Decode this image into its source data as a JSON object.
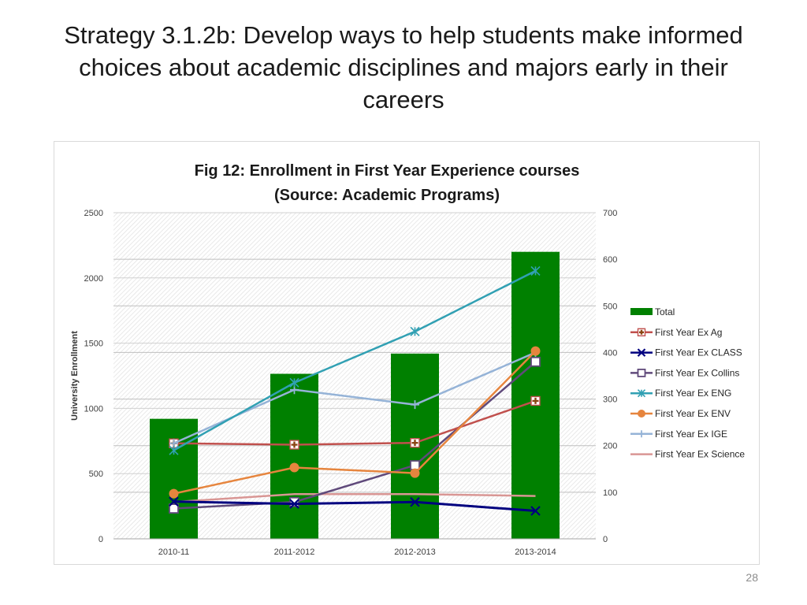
{
  "slide": {
    "title": "Strategy 3.1.2b: Develop ways to help students make informed choices about academic disciplines and majors early in their careers",
    "page_number": "28"
  },
  "colors": {
    "Total": "#008000",
    "First Year Ex Ag": "#c0504d",
    "First Year Ex CLASS": "#00007f",
    "First Year Ex Collins": "#604a7b",
    "First Year Ex ENG": "#31a0b3",
    "First Year Ex ENV": "#e6853e",
    "First Year Ex IGE": "#95b3d7",
    "First Year Ex Science": "#d99694"
  },
  "chart_data": {
    "type": "bar",
    "title": "Fig 12: Enrollment in First Year Experience courses",
    "subtitle": "(Source: Academic Programs)",
    "ylabel": "University Enrollment",
    "categories": [
      "2010-11",
      "2011-2012",
      "2012-2013",
      "2013-2014"
    ],
    "ylim": [
      0,
      2500
    ],
    "y_ticks": [
      0,
      500,
      1000,
      1500,
      2000,
      2500
    ],
    "y2lim": [
      0,
      700
    ],
    "y2_ticks": [
      0,
      100,
      200,
      300,
      400,
      500,
      600,
      700
    ],
    "legend_position": "right",
    "grid": true,
    "series": [
      {
        "name": "Total",
        "type": "bar",
        "axis": "primary",
        "values": [
          920,
          1265,
          1420,
          2200
        ]
      },
      {
        "name": "First Year Ex Ag",
        "type": "line",
        "axis": "secondary",
        "marker": "plus-square",
        "values": [
          205,
          202,
          206,
          296
        ]
      },
      {
        "name": "First Year Ex CLASS",
        "type": "line",
        "axis": "secondary",
        "marker": "x",
        "values": [
          80,
          75,
          79,
          60
        ]
      },
      {
        "name": "First Year Ex Collins",
        "type": "line",
        "axis": "secondary",
        "marker": "square",
        "values": [
          65,
          79,
          158,
          380
        ]
      },
      {
        "name": "First Year Ex ENG",
        "type": "line",
        "axis": "secondary",
        "marker": "star",
        "values": [
          190,
          335,
          445,
          575
        ]
      },
      {
        "name": "First Year Ex ENV",
        "type": "line",
        "axis": "secondary",
        "marker": "circle",
        "values": [
          97,
          153,
          141,
          403
        ]
      },
      {
        "name": "First Year Ex IGE",
        "type": "line",
        "axis": "secondary",
        "marker": "plus",
        "values": [
          205,
          320,
          288,
          400
        ]
      },
      {
        "name": "First Year Ex Science",
        "type": "line",
        "axis": "secondary",
        "marker": "none",
        "values": [
          79,
          96,
          96,
          92
        ]
      }
    ]
  }
}
